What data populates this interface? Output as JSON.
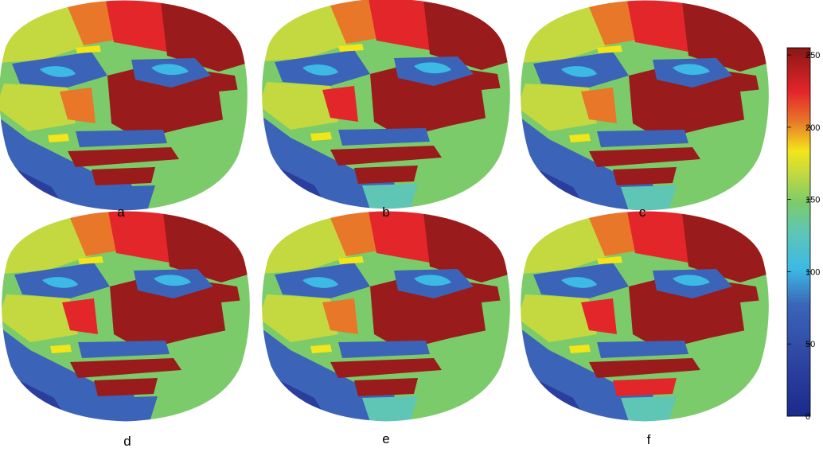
{
  "figure": {
    "panels": [
      {
        "label": "a",
        "variant": 0
      },
      {
        "label": "b",
        "variant": 1
      },
      {
        "label": "c",
        "variant": 2
      },
      {
        "label": "d",
        "variant": 3
      },
      {
        "label": "e",
        "variant": 4
      },
      {
        "label": "f",
        "variant": 5
      }
    ],
    "colorbar": {
      "ticks": [
        "0",
        "50",
        "100",
        "150",
        "200",
        "250"
      ],
      "range": [
        0,
        255
      ],
      "colormap": "jet"
    }
  },
  "colors": {
    "dark_red": "#9a1b1b",
    "red": "#e3262a",
    "orange": "#e8772a",
    "yellow": "#f2e619",
    "yellow_green": "#c4d940",
    "green": "#7ccb6a",
    "teal": "#5fc6b5",
    "cyan": "#3cb9e4",
    "blue": "#3b64b8",
    "dark_blue": "#2a3e9d"
  }
}
